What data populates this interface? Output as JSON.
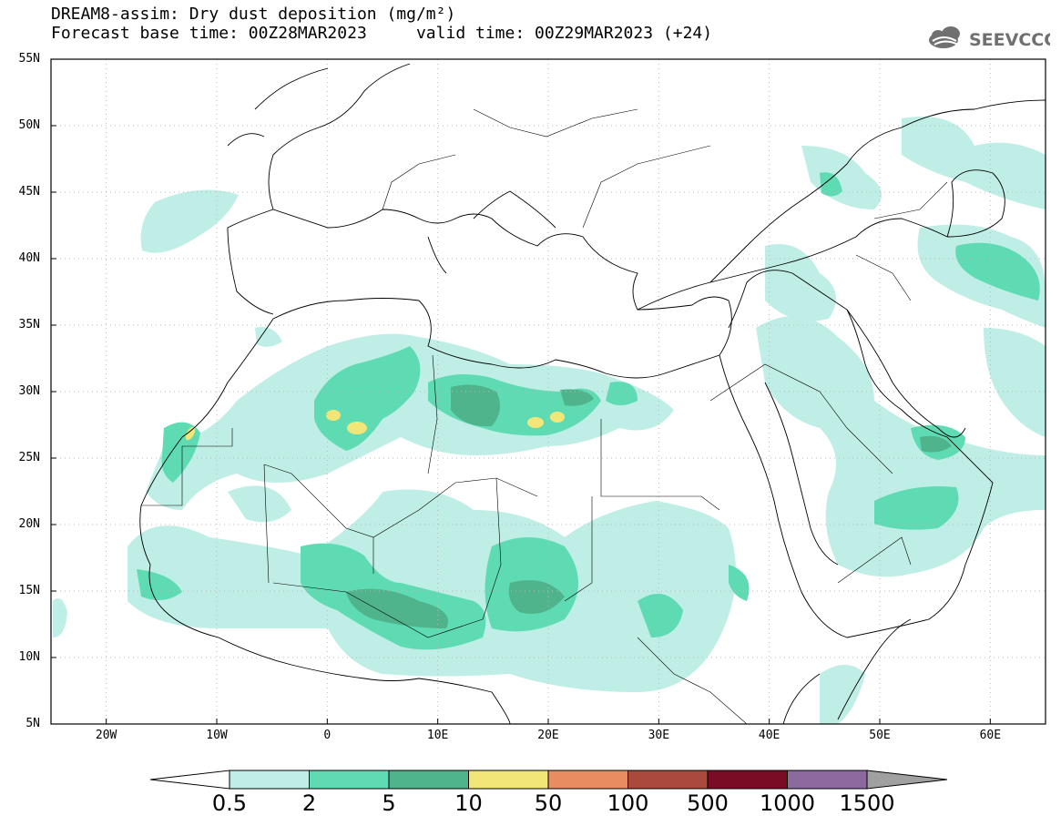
{
  "header": {
    "line1": "DREAM8-assim: Dry dust deposition (mg/m²)",
    "line2": "Forecast base time: 00Z28MAR2023     valid time: 00Z29MAR2023 (+24)",
    "logo_text": "SEEVCCC"
  },
  "map": {
    "lon_range": [
      -25,
      65
    ],
    "lat_range": [
      5,
      55
    ],
    "lat_labels": [
      "55N",
      "50N",
      "45N",
      "40N",
      "35N",
      "30N",
      "25N",
      "20N",
      "15N",
      "10N",
      "5N"
    ],
    "lon_labels": [
      "20W",
      "10W",
      "0",
      "10E",
      "20E",
      "30E",
      "40E",
      "50E",
      "60E"
    ]
  },
  "legend": {
    "ticks": [
      "0.5",
      "2",
      "5",
      "10",
      "50",
      "100",
      "500",
      "1000",
      "1500"
    ],
    "colors": [
      "#ffffff",
      "#bfeee6",
      "#5fdbb4",
      "#4fb38c",
      "#f2e679",
      "#e98c62",
      "#a94a3d",
      "#7a0d25",
      "#8c6aa0",
      "#a0a0a0"
    ]
  }
}
